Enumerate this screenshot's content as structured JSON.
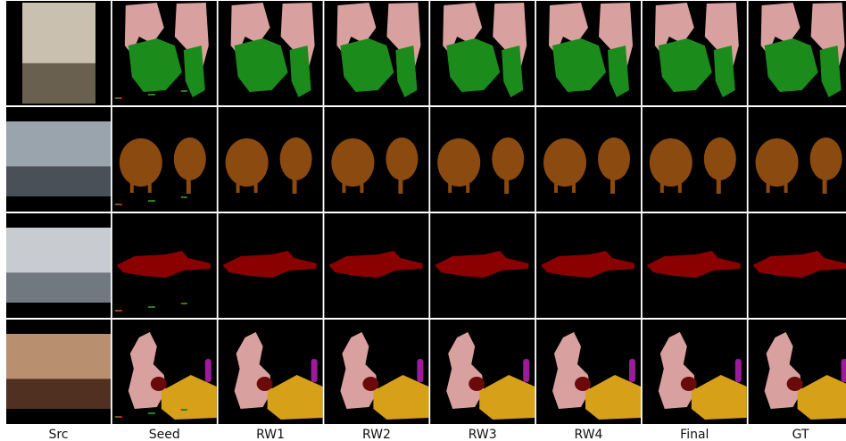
{
  "figure": {
    "columns": [
      "Src",
      "Seed",
      "RW1",
      "RW2",
      "RW3",
      "RW4",
      "Final",
      "GT"
    ]
  }
}
